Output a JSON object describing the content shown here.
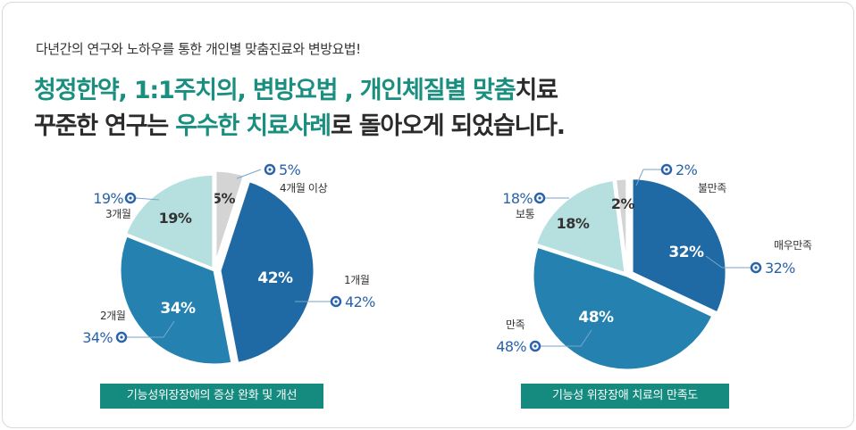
{
  "header": {
    "subtitle": "다년간의 연구와 노하우를 통한 개인별 맞춤진료와 변방요법!",
    "line1_parts": [
      {
        "text": "청정한약, 1:1주치의, 변방요법 , 개인체질별 맞춤",
        "highlight": true
      },
      {
        "text": "치료",
        "highlight": false
      }
    ],
    "line2_parts": [
      {
        "text": "꾸준한 연구는 ",
        "highlight": false
      },
      {
        "text": "우수한 치료사례",
        "highlight": true
      },
      {
        "text": "로 돌아오게 되었습니다.",
        "highlight": false
      }
    ]
  },
  "colors": {
    "accent": "#1a8f80",
    "caption_bg": "#158a7f",
    "callout_value": "#2a63a8",
    "slice_dark": "#1f6aa5",
    "slice_mid": "#2582b0",
    "slice_light": "#b5e0df",
    "slice_gray": "#d4d4d4"
  },
  "chart_data": [
    {
      "type": "pie",
      "title": "기능성위장장애의 증상 완화 및 개선",
      "slices": [
        {
          "label": "4개월 이상",
          "value": 5,
          "text": "5%"
        },
        {
          "label": "1개월",
          "value": 42,
          "text": "42%"
        },
        {
          "label": "2개월",
          "value": 34,
          "text": "34%"
        },
        {
          "label": "3개월",
          "value": 19,
          "text": "19%"
        }
      ]
    },
    {
      "type": "pie",
      "title": "기능성 위장장애 치료의 만족도",
      "slices": [
        {
          "label": "매우만족",
          "value": 32,
          "text": "32%"
        },
        {
          "label": "만족",
          "value": 48,
          "text": "48%"
        },
        {
          "label": "보통",
          "value": 18,
          "text": "18%"
        },
        {
          "label": "불만족",
          "value": 2,
          "text": "2%"
        }
      ]
    }
  ]
}
